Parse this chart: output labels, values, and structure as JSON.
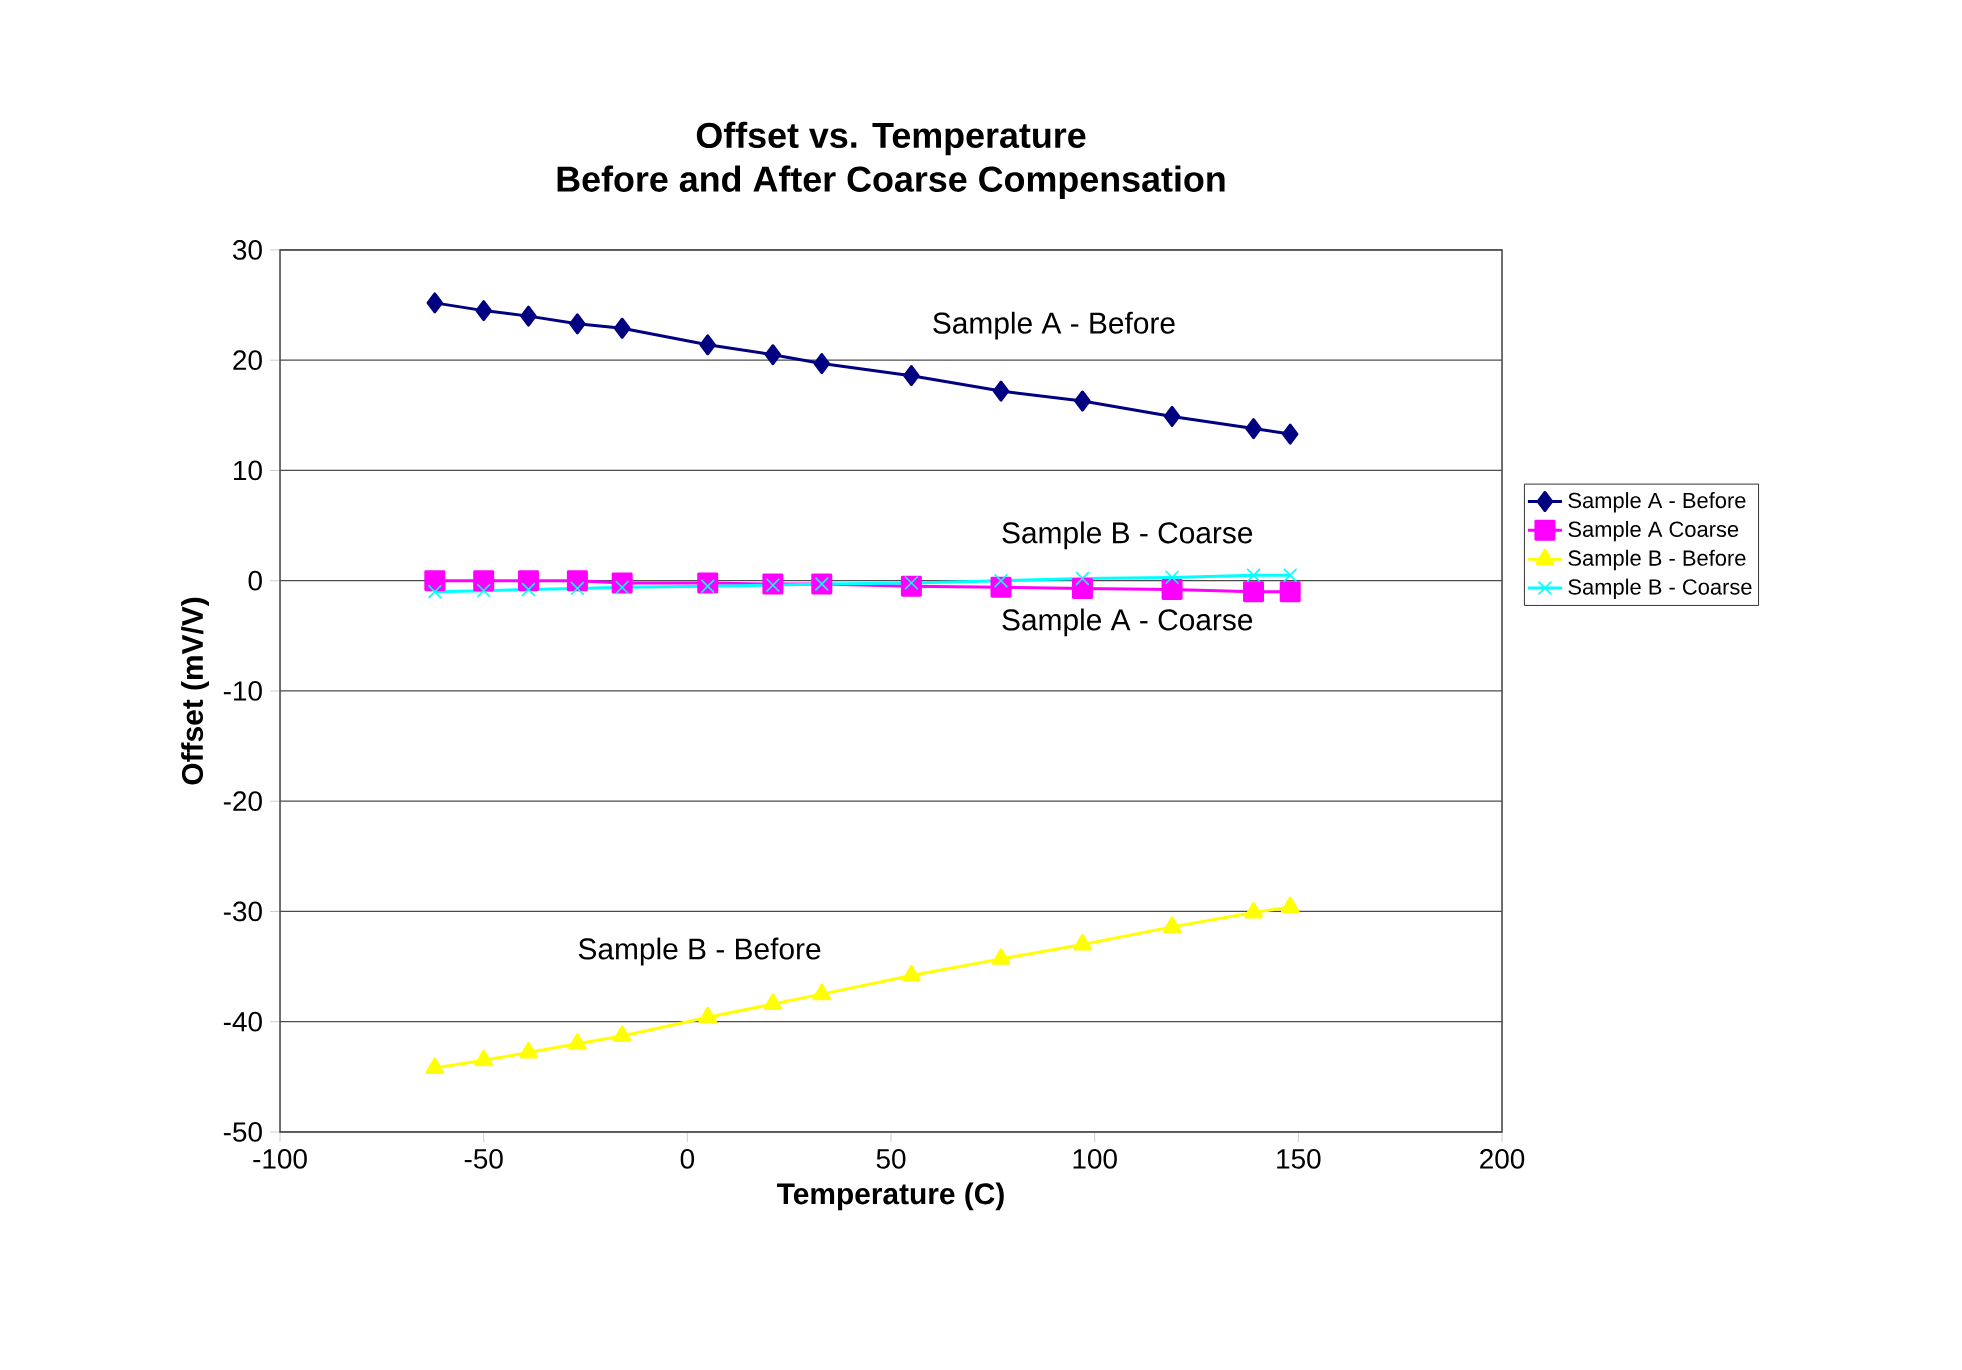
{
  "chart_data": {
    "type": "line",
    "title": "Offset vs. Temperature\nBefore and After Coarse Compensation",
    "xlabel": "Temperature (C)",
    "ylabel": "Offset (mV/V)",
    "x": [
      -62,
      -50,
      -39,
      -27,
      -16,
      5,
      21,
      33,
      55,
      77,
      97,
      119,
      139,
      148
    ],
    "series": [
      {
        "name": "Sample A - Before",
        "color": "#000080",
        "marker": "diamond",
        "values": [
          25.2,
          24.5,
          24.0,
          23.3,
          22.9,
          21.4,
          20.5,
          19.7,
          18.6,
          17.2,
          16.3,
          14.9,
          13.8,
          13.3
        ]
      },
      {
        "name": "Sample A Coarse",
        "color": "#ff00ff",
        "marker": "square",
        "values": [
          0.0,
          0.0,
          0.0,
          0.0,
          -0.2,
          -0.2,
          -0.3,
          -0.3,
          -0.5,
          -0.6,
          -0.7,
          -0.8,
          -1.0,
          -1.0
        ]
      },
      {
        "name": "Sample B - Before",
        "color": "#ffff00",
        "marker": "triangle",
        "values": [
          -44.2,
          -43.5,
          -42.8,
          -42.0,
          -41.3,
          -39.6,
          -38.4,
          -37.5,
          -35.8,
          -34.3,
          -33.0,
          -31.4,
          -30.1,
          -29.6
        ]
      },
      {
        "name": "Sample B - Coarse",
        "color": "#00ffff",
        "marker": "cross",
        "values": [
          -1.0,
          -0.9,
          -0.8,
          -0.7,
          -0.6,
          -0.5,
          -0.4,
          -0.3,
          -0.2,
          0.0,
          0.2,
          0.3,
          0.5,
          0.5
        ]
      }
    ],
    "annotations": [
      {
        "text": "Sample A - Before",
        "x": 90,
        "y": 16.6
      },
      {
        "text": "Sample B - Coarse",
        "x": 108,
        "y": 0.3
      },
      {
        "text": "Sample A - Coarse",
        "x": 108,
        "y": -0.7
      },
      {
        "text": "Sample B - Before",
        "x": 3,
        "y": -39.8
      }
    ],
    "xlim": [
      -100,
      200
    ],
    "xticks": [
      -100,
      -50,
      0,
      50,
      100,
      150,
      200
    ],
    "ylim": [
      -50,
      30
    ],
    "yticks": [
      -50,
      -40,
      -30,
      -20,
      -10,
      0,
      10,
      20,
      30
    ],
    "grid": "y",
    "legend": "right",
    "line_style": "solid"
  }
}
